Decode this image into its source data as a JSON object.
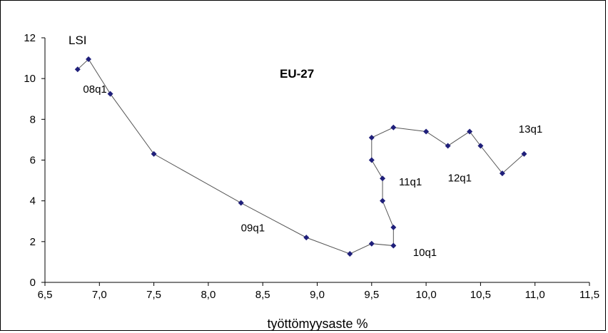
{
  "chart_data": {
    "type": "scatter",
    "title": "EU-27",
    "xlabel": "työttömyysaste %",
    "ylabel": "LSI",
    "xlim": [
      6.5,
      11.5
    ],
    "ylim": [
      0,
      12
    ],
    "x_ticks": [
      "6,5",
      "7,0",
      "7,5",
      "8,0",
      "8,5",
      "9,0",
      "9,5",
      "10,0",
      "10,5",
      "11,0",
      "11,5"
    ],
    "y_ticks": [
      "0",
      "2",
      "4",
      "6",
      "8",
      "10",
      "12"
    ],
    "grid": false,
    "marker_color": "#1f1f7a",
    "line_color": "#555555",
    "series": [
      {
        "points": [
          {
            "x": 6.8,
            "y": 10.45
          },
          {
            "x": 6.9,
            "y": 10.95
          },
          {
            "x": 7.1,
            "y": 9.25
          },
          {
            "x": 7.5,
            "y": 6.3
          },
          {
            "x": 8.3,
            "y": 3.9
          },
          {
            "x": 8.9,
            "y": 2.2
          },
          {
            "x": 9.3,
            "y": 1.4
          },
          {
            "x": 9.5,
            "y": 1.9
          },
          {
            "x": 9.7,
            "y": 1.8
          },
          {
            "x": 9.7,
            "y": 2.7
          },
          {
            "x": 9.6,
            "y": 4.0
          },
          {
            "x": 9.6,
            "y": 5.1
          },
          {
            "x": 9.5,
            "y": 6.0
          },
          {
            "x": 9.5,
            "y": 7.1
          },
          {
            "x": 9.7,
            "y": 7.6
          },
          {
            "x": 10.0,
            "y": 7.4
          },
          {
            "x": 10.2,
            "y": 6.7
          },
          {
            "x": 10.4,
            "y": 7.4
          },
          {
            "x": 10.5,
            "y": 6.7
          },
          {
            "x": 10.7,
            "y": 5.35
          },
          {
            "x": 10.9,
            "y": 6.3
          }
        ]
      }
    ],
    "annotations": [
      {
        "text": "08q1",
        "x": 6.85,
        "y": 9.3
      },
      {
        "text": "09q1",
        "x": 8.3,
        "y": 2.5
      },
      {
        "text": "10q1",
        "x": 9.88,
        "y": 1.3
      },
      {
        "text": "11q1",
        "x": 9.75,
        "y": 4.75
      },
      {
        "text": "12q1",
        "x": 10.2,
        "y": 4.95
      },
      {
        "text": "13q1",
        "x": 10.85,
        "y": 7.35
      }
    ]
  }
}
